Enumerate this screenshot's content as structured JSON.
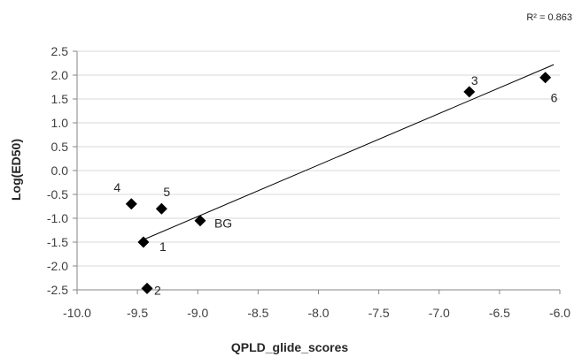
{
  "chart_data": {
    "type": "scatter",
    "xlabel": "QPLD_glide_scores",
    "ylabel": "Log(ED50)",
    "r2_label": "R² = 0.863",
    "xlim": [
      -10.0,
      -6.0
    ],
    "ylim": [
      -2.5,
      2.5
    ],
    "x_ticks": [
      "-10.0",
      "-9.5",
      "-9.0",
      "-8.5",
      "-8.0",
      "-7.5",
      "-7.0",
      "-6.5",
      "-6.0"
    ],
    "y_ticks": [
      "2.5",
      "2.0",
      "1.5",
      "1.0",
      "0.5",
      "0.0",
      "-0.5",
      "-1.0",
      "-1.5",
      "-2.0",
      "-2.5"
    ],
    "grid": "horizontal",
    "points": [
      {
        "label": "1",
        "x": -9.45,
        "y": -1.5
      },
      {
        "label": "2",
        "x": -9.42,
        "y": -2.47
      },
      {
        "label": "3",
        "x": -6.75,
        "y": 1.65
      },
      {
        "label": "4",
        "x": -9.55,
        "y": -0.7
      },
      {
        "label": "5",
        "x": -9.3,
        "y": -0.8
      },
      {
        "label": "6",
        "x": -6.12,
        "y": 1.95
      },
      {
        "label": "BG",
        "x": -8.98,
        "y": -1.05
      }
    ],
    "trendline": {
      "type": "linear",
      "x": [
        -9.47,
        -6.05
      ],
      "y": [
        -1.47,
        2.22
      ]
    },
    "marker_color": "#000000",
    "line_color": "#000000",
    "grid_color": "#d9d9d9"
  }
}
